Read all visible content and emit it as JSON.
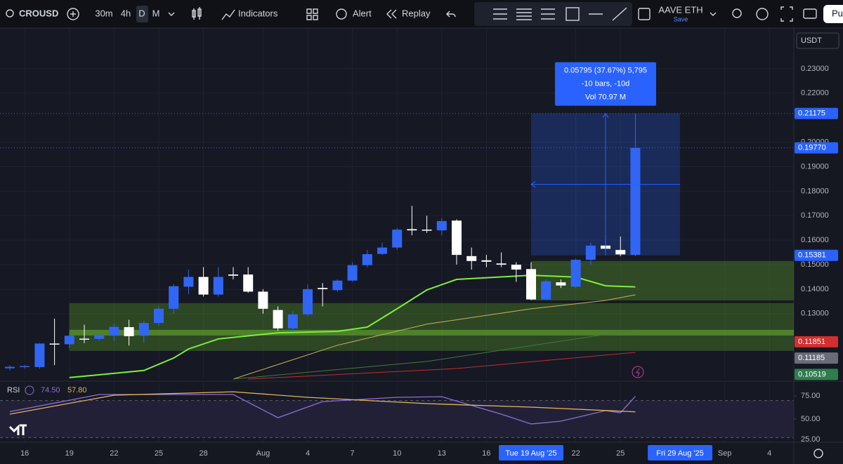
{
  "toolbar": {
    "symbol": "CROUSD",
    "intervals": [
      "30m",
      "4h",
      "D",
      "M"
    ],
    "active_interval": 2,
    "indicators": "Indicators",
    "alert": "Alert",
    "replay": "Replay",
    "layout_name": "AAVE ETH",
    "save": "Save",
    "publish": "Pu",
    "currency": "USDT"
  },
  "chart_data": {
    "type": "candlestick",
    "xlim": [
      -0.66,
      52.64
    ],
    "ylim": [
      0.1033,
      0.2466
    ],
    "yticks": [
      {
        "value": 0.23,
        "label": "0.23000"
      },
      {
        "value": 0.22,
        "label": "0.22000"
      },
      {
        "value": 0.2,
        "label": "0.20000"
      },
      {
        "value": 0.19,
        "label": "0.19000"
      },
      {
        "value": 0.18,
        "label": "0.18000"
      },
      {
        "value": 0.17,
        "label": "0.17000"
      },
      {
        "value": 0.16,
        "label": "0.16000"
      },
      {
        "value": 0.15,
        "label": "0.15000"
      },
      {
        "value": 0.14,
        "label": "0.14000"
      },
      {
        "value": 0.13,
        "label": "0.13000"
      }
    ],
    "xticks": [
      {
        "value": 1,
        "label": "16"
      },
      {
        "value": 4,
        "label": "19"
      },
      {
        "value": 7,
        "label": "22"
      },
      {
        "value": 10,
        "label": "25"
      },
      {
        "value": 13,
        "label": "28"
      },
      {
        "value": 17,
        "label": "Aug"
      },
      {
        "value": 20,
        "label": "4"
      },
      {
        "value": 23,
        "label": "7"
      },
      {
        "value": 26,
        "label": "10"
      },
      {
        "value": 29,
        "label": "13"
      },
      {
        "value": 32,
        "label": "16"
      },
      {
        "value": 38,
        "label": "22"
      },
      {
        "value": 41,
        "label": "25"
      },
      {
        "value": 48,
        "label": "Sep"
      },
      {
        "value": 51,
        "label": "4"
      }
    ],
    "highlighted_dates": [
      {
        "value": 35,
        "label": "Tue 19 Aug '25"
      },
      {
        "value": 45,
        "label": "Fri 29 Aug '25"
      }
    ],
    "grid": true,
    "up_color": "#3166f5",
    "down_color": "#ffffff",
    "open": [
      0.1077,
      0.1082,
      0.1082,
      0.1178,
      0.1175,
      0.1198,
      0.1197,
      0.121,
      0.1245,
      0.121,
      0.1262,
      0.132,
      0.141,
      0.145,
      0.1378,
      0.146,
      0.146,
      0.139,
      0.1315,
      0.124,
      0.1297,
      0.1405,
      0.1396,
      0.1435,
      0.1498,
      0.1544,
      0.157,
      0.1645,
      0.1643,
      0.164,
      0.168,
      0.1535,
      0.1518,
      0.1505,
      0.15,
      0.1482,
      0.1358,
      0.1428,
      0.141,
      0.152,
      0.1578,
      0.156,
      0.154
    ],
    "high": [
      0.109,
      0.109,
      0.118,
      0.128,
      0.122,
      0.1255,
      0.122,
      0.126,
      0.1275,
      0.127,
      0.133,
      0.142,
      0.148,
      0.149,
      0.149,
      0.149,
      0.149,
      0.14,
      0.133,
      0.131,
      0.142,
      0.1425,
      0.144,
      0.151,
      0.156,
      0.159,
      0.165,
      0.174,
      0.17,
      0.169,
      0.1685,
      0.157,
      0.154,
      0.155,
      0.151,
      0.151,
      0.144,
      0.144,
      0.1525,
      0.159,
      0.162,
      0.1615,
      0.21175
    ],
    "low": [
      0.1068,
      0.1076,
      0.1075,
      0.109,
      0.116,
      0.118,
      0.119,
      0.119,
      0.117,
      0.118,
      0.125,
      0.13,
      0.138,
      0.137,
      0.137,
      0.144,
      0.1385,
      0.13,
      0.123,
      0.1225,
      0.129,
      0.133,
      0.139,
      0.143,
      0.149,
      0.154,
      0.156,
      0.162,
      0.163,
      0.162,
      0.15,
      0.148,
      0.149,
      0.149,
      0.143,
      0.1355,
      0.1355,
      0.1405,
      0.1405,
      0.15,
      0.155,
      0.1535,
      0.1535
    ],
    "close": [
      0.1083,
      0.1086,
      0.1178,
      0.1175,
      0.121,
      0.1195,
      0.1213,
      0.1246,
      0.1208,
      0.1262,
      0.132,
      0.1412,
      0.145,
      0.1378,
      0.145,
      0.1455,
      0.139,
      0.132,
      0.124,
      0.1297,
      0.14,
      0.14,
      0.1435,
      0.1498,
      0.1543,
      0.157,
      0.1643,
      0.164,
      0.164,
      0.1678,
      0.154,
      0.1515,
      0.1512,
      0.15,
      0.148,
      0.1358,
      0.1432,
      0.1415,
      0.152,
      0.1578,
      0.1565,
      0.1542,
      0.1977
    ],
    "moving_averages": [
      {
        "color": "#7cf03c",
        "width": 2,
        "x": [
          4,
          9,
          11,
          12,
          14,
          18,
          22,
          24,
          26,
          28,
          30,
          35,
          38,
          40,
          42
        ],
        "values": [
          0.1039,
          0.1068,
          0.1119,
          0.1156,
          0.1197,
          0.1222,
          0.1228,
          0.1245,
          0.132,
          0.1397,
          0.144,
          0.1457,
          0.1449,
          0.1414,
          0.1409
        ]
      },
      {
        "color": "#c9b458",
        "width": 1,
        "x": [
          15,
          22,
          28,
          35,
          40,
          42
        ],
        "values": [
          0.1033,
          0.1171,
          0.1257,
          0.132,
          0.1354,
          0.1377
        ]
      },
      {
        "color": "#3f7d3a",
        "width": 1,
        "x": [
          15,
          28,
          42
        ],
        "values": [
          0.1033,
          0.1105,
          0.1234
        ]
      },
      {
        "color": "#b8332f",
        "width": 1,
        "x": [
          16,
          30,
          42
        ],
        "values": [
          0.1033,
          0.1076,
          0.1142
        ]
      }
    ],
    "zones": [
      {
        "from": 35,
        "low": 0.1354,
        "high": 0.1515,
        "color": "rgba(95,170,40,0.35)"
      },
      {
        "from": 4,
        "low": 0.1148,
        "high": 0.1343,
        "color": "rgba(95,170,40,0.32)"
      },
      {
        "from": 4,
        "low": 0.1211,
        "high": 0.1234,
        "color": "rgba(120,200,50,0.45)"
      }
    ],
    "measure": {
      "from": 35,
      "to": 45,
      "low": 0.15381,
      "high": 0.21175,
      "lines": [
        "0.05795 (37.67%) 5,795",
        "-10 bars, -10d",
        "Vol 70.97 M"
      ]
    },
    "price_badges": [
      {
        "value": 0.21175,
        "color": "#2962ff",
        "dotted": true
      },
      {
        "value": 0.1977,
        "label": "0.19770",
        "color": "#2962ff",
        "dotted": true
      },
      {
        "value": 0.15381,
        "color": "#2962ff"
      },
      {
        "value": 0.11851,
        "color": "#d32f2f"
      },
      {
        "value": 0.11185,
        "color": "#6a6d78"
      },
      {
        "value": 0.10519,
        "color": "#2e7d4f"
      }
    ],
    "rsi": {
      "title": "RSI",
      "ylim": [
        25,
        89.4
      ],
      "yticks": [
        {
          "value": 75,
          "label": "75.00"
        },
        {
          "value": 50,
          "label": "50.00"
        },
        {
          "value": 25,
          "label": "25.00"
        }
      ],
      "band": [
        30,
        70
      ],
      "series": [
        {
          "color": "#8c6fd8",
          "last_label": "74.50",
          "x": [
            0,
            6,
            15,
            18,
            21,
            26,
            29,
            33,
            35,
            37,
            40,
            41,
            42
          ],
          "values": [
            58,
            76.5,
            76.5,
            51.5,
            68.9,
            73.5,
            74.2,
            55.3,
            44.7,
            47.7,
            59.1,
            56.8,
            74.5
          ]
        },
        {
          "color": "#e0b45a",
          "last_label": "57.80",
          "x": [
            0,
            7,
            15,
            20,
            28,
            35,
            42
          ],
          "values": [
            55.3,
            75.8,
            79.5,
            73.5,
            66.7,
            62.9,
            57.8
          ]
        }
      ]
    }
  }
}
